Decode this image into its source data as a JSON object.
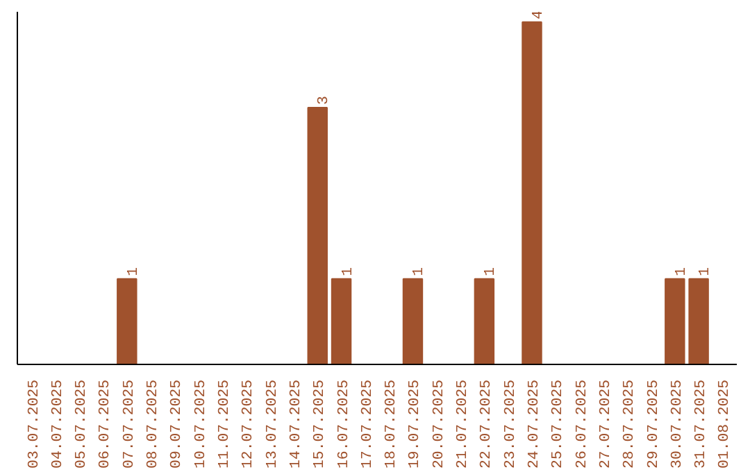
{
  "chart_data": {
    "type": "bar",
    "categories": [
      "03.07.2025",
      "04.07.2025",
      "05.07.2025",
      "06.07.2025",
      "07.07.2025",
      "08.07.2025",
      "09.07.2025",
      "10.07.2025",
      "11.07.2025",
      "12.07.2025",
      "13.07.2025",
      "14.07.2025",
      "15.07.2025",
      "16.07.2025",
      "17.07.2025",
      "18.07.2025",
      "19.07.2025",
      "20.07.2025",
      "21.07.2025",
      "22.07.2025",
      "23.07.2025",
      "24.07.2025",
      "25.07.2025",
      "26.07.2025",
      "27.07.2025",
      "28.07.2025",
      "29.07.2025",
      "30.07.2025",
      "31.07.2025",
      "01.08.2025"
    ],
    "values": [
      0,
      0,
      0,
      0,
      1,
      0,
      0,
      0,
      0,
      0,
      0,
      0,
      3,
      1,
      0,
      0,
      1,
      0,
      0,
      1,
      0,
      4,
      0,
      0,
      0,
      0,
      0,
      1,
      1,
      0
    ],
    "value_labels": [
      null,
      null,
      null,
      null,
      "1",
      null,
      null,
      null,
      null,
      null,
      null,
      null,
      "3",
      "1",
      null,
      null,
      "1",
      null,
      null,
      "1",
      null,
      "4",
      null,
      null,
      null,
      null,
      null,
      "1",
      "1",
      null
    ],
    "color": "#a0522d",
    "grid": false,
    "tick_labels": "x"
  }
}
